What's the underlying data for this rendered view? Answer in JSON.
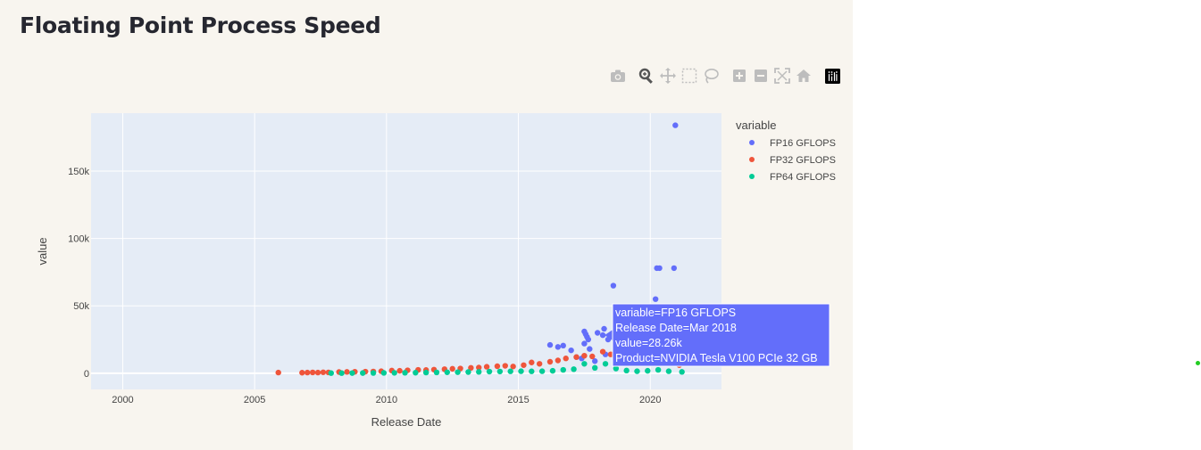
{
  "page": {
    "title": "Floating Point Process Speed"
  },
  "modebar": [
    {
      "name": "camera-icon",
      "title": "Download plot as a png"
    },
    {
      "name": "zoom-icon",
      "title": "Zoom"
    },
    {
      "name": "pan-icon",
      "title": "Pan"
    },
    {
      "name": "box-select-icon",
      "title": "Box Select"
    },
    {
      "name": "lasso-select-icon",
      "title": "Lasso Select"
    },
    {
      "name": "zoom-in-icon",
      "title": "Zoom in"
    },
    {
      "name": "zoom-out-icon",
      "title": "Zoom out"
    },
    {
      "name": "autoscale-icon",
      "title": "Autoscale"
    },
    {
      "name": "reset-axes-icon",
      "title": "Reset axes"
    },
    {
      "name": "plotly-logo-icon",
      "title": "Produced with Plotly"
    }
  ],
  "colors": {
    "FP16": "#636efa",
    "FP32": "#ef553b",
    "FP64": "#00cc96",
    "plot_bg": "#e5ecf6",
    "panel_bg": "#f8f5ef"
  },
  "chart_data": {
    "type": "scatter",
    "xlabel": "Release Date",
    "ylabel": "value",
    "xlim": [
      1998.8,
      2022.7
    ],
    "ylim": [
      -12000,
      193000
    ],
    "xticks": [
      2000,
      2005,
      2010,
      2015,
      2020
    ],
    "xtick_labels": [
      "2000",
      "2005",
      "2010",
      "2015",
      "2020"
    ],
    "yticks": [
      0,
      50000,
      100000,
      150000
    ],
    "ytick_labels": [
      "0",
      "50k",
      "100k",
      "150k"
    ],
    "grid": true,
    "legend": {
      "title": "variable",
      "placement": "right"
    },
    "series": [
      {
        "name": "FP16 GFLOPS",
        "points": [
          [
            2016.2,
            21000
          ],
          [
            2016.5,
            19500
          ],
          [
            2016.7,
            20500
          ],
          [
            2017.0,
            17000
          ],
          [
            2017.2,
            12000
          ],
          [
            2017.4,
            11000
          ],
          [
            2017.5,
            31000
          ],
          [
            2017.55,
            29000
          ],
          [
            2017.6,
            27000
          ],
          [
            2017.65,
            25000
          ],
          [
            2017.5,
            22000
          ],
          [
            2017.7,
            18000
          ],
          [
            2017.9,
            9000
          ],
          [
            2018.0,
            30000
          ],
          [
            2018.2,
            28260
          ],
          [
            2018.25,
            33000
          ],
          [
            2018.3,
            14000
          ],
          [
            2018.4,
            25000
          ],
          [
            2018.6,
            65000
          ],
          [
            2018.7,
            12000
          ],
          [
            2019.0,
            8000
          ],
          [
            2019.3,
            10000
          ],
          [
            2019.6,
            9000
          ],
          [
            2020.2,
            55000
          ],
          [
            2020.25,
            78000
          ],
          [
            2020.35,
            78000
          ],
          [
            2020.5,
            20000
          ],
          [
            2020.9,
            78000
          ],
          [
            2020.95,
            184000
          ]
        ]
      },
      {
        "name": "FP32 GFLOPS",
        "points": [
          [
            2005.9,
            500
          ],
          [
            2006.8,
            400
          ],
          [
            2007.0,
            500
          ],
          [
            2007.2,
            600
          ],
          [
            2007.4,
            500
          ],
          [
            2007.6,
            700
          ],
          [
            2007.8,
            600
          ],
          [
            2008.2,
            900
          ],
          [
            2008.5,
            1000
          ],
          [
            2008.8,
            1100
          ],
          [
            2009.2,
            1200
          ],
          [
            2009.5,
            1300
          ],
          [
            2009.8,
            1500
          ],
          [
            2010.2,
            2000
          ],
          [
            2010.5,
            1800
          ],
          [
            2010.8,
            2200
          ],
          [
            2011.2,
            2500
          ],
          [
            2011.5,
            2400
          ],
          [
            2011.8,
            2700
          ],
          [
            2012.2,
            3000
          ],
          [
            2012.5,
            3300
          ],
          [
            2012.8,
            3500
          ],
          [
            2013.2,
            4000
          ],
          [
            2013.5,
            4200
          ],
          [
            2013.8,
            4800
          ],
          [
            2014.2,
            5200
          ],
          [
            2014.5,
            5500
          ],
          [
            2014.8,
            5000
          ],
          [
            2015.2,
            6000
          ],
          [
            2015.5,
            8000
          ],
          [
            2015.8,
            7000
          ],
          [
            2016.2,
            8500
          ],
          [
            2016.5,
            9500
          ],
          [
            2016.8,
            11000
          ],
          [
            2017.2,
            12000
          ],
          [
            2017.5,
            13000
          ],
          [
            2017.8,
            12500
          ],
          [
            2018.2,
            16000
          ],
          [
            2018.5,
            14000
          ],
          [
            2018.8,
            11000
          ],
          [
            2019.2,
            10000
          ],
          [
            2019.5,
            12000
          ],
          [
            2019.8,
            9000
          ],
          [
            2020.2,
            10000
          ],
          [
            2020.5,
            8000
          ],
          [
            2020.8,
            7000
          ],
          [
            2021.1,
            6000
          ]
        ]
      },
      {
        "name": "FP64 GFLOPS",
        "points": [
          [
            2007.9,
            80
          ],
          [
            2008.3,
            100
          ],
          [
            2008.7,
            120
          ],
          [
            2009.1,
            150
          ],
          [
            2009.5,
            200
          ],
          [
            2009.9,
            250
          ],
          [
            2010.3,
            300
          ],
          [
            2010.7,
            350
          ],
          [
            2011.1,
            400
          ],
          [
            2011.5,
            500
          ],
          [
            2011.9,
            600
          ],
          [
            2012.3,
            700
          ],
          [
            2012.7,
            800
          ],
          [
            2013.1,
            900
          ],
          [
            2013.5,
            1000
          ],
          [
            2013.9,
            1200
          ],
          [
            2014.3,
            1300
          ],
          [
            2014.7,
            1400
          ],
          [
            2015.1,
            1500
          ],
          [
            2015.5,
            1400
          ],
          [
            2015.9,
            1500
          ],
          [
            2016.3,
            1800
          ],
          [
            2016.7,
            2500
          ],
          [
            2017.1,
            3000
          ],
          [
            2017.5,
            7000
          ],
          [
            2017.9,
            4000
          ],
          [
            2018.3,
            7000
          ],
          [
            2018.7,
            3500
          ],
          [
            2019.1,
            2000
          ],
          [
            2019.5,
            1500
          ],
          [
            2019.9,
            1800
          ],
          [
            2020.3,
            2500
          ],
          [
            2020.7,
            1500
          ],
          [
            2021.2,
            1000
          ]
        ]
      }
    ],
    "hover": {
      "series": "FP16 GFLOPS",
      "x": 2018.2,
      "y": 28260,
      "lines": [
        "variable=FP16 GFLOPS",
        "Release Date=Mar 2018",
        "value=28.26k",
        "Product=NVIDIA Tesla V100 PCIe 32 GB"
      ]
    }
  }
}
